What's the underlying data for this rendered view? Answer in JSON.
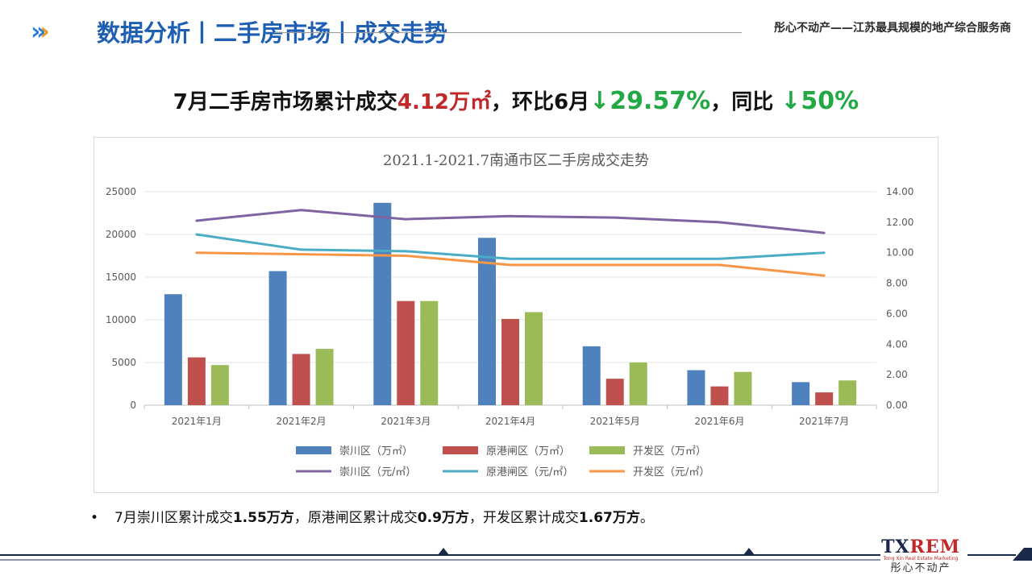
{
  "header": {
    "title": "数据分析丨二手房市场丨成交走势",
    "slogan": "彤心不动产——江苏最具规模的地产综合服务商",
    "icon": "chevron-right-triple-icon"
  },
  "headline": {
    "prefix": "7月二手房市场累计成交",
    "volume": "4.12万㎡",
    "mid": "，环比6月",
    "mom": "↓29.57%",
    "mid2": "，同比 ",
    "yoy": "↓50%"
  },
  "chart_data": {
    "type": "bar",
    "title": "2021.1-2021.7南通市区二手房成交走势",
    "categories": [
      "2021年1月",
      "2021年2月",
      "2021年3月",
      "2021年4月",
      "2021年5月",
      "2021年6月",
      "2021年7月"
    ],
    "ylim_left": [
      0,
      25000
    ],
    "yticks_left": [
      "0",
      "5000",
      "10000",
      "15000",
      "20000",
      "25000"
    ],
    "ylim_right": [
      0,
      14
    ],
    "yticks_right": [
      "0.00",
      "2.00",
      "4.00",
      "6.00",
      "8.00",
      "10.00",
      "12.00",
      "14.00"
    ],
    "bar_series": [
      {
        "name": "崇川区（万㎡）",
        "color": "#4f81bd",
        "values": [
          13000,
          15700,
          23700,
          19600,
          6900,
          4100,
          2700
        ]
      },
      {
        "name": "原港闸区（万㎡）",
        "color": "#c0504d",
        "values": [
          5600,
          6000,
          12200,
          10100,
          3100,
          2200,
          1500
        ]
      },
      {
        "name": "开发区（万㎡）",
        "color": "#9bbb59",
        "values": [
          4700,
          6600,
          12200,
          10900,
          5000,
          3900,
          2900
        ]
      }
    ],
    "line_series": [
      {
        "name": "崇川区（元/㎡）",
        "color": "#8064a2",
        "values": [
          12.1,
          12.8,
          12.2,
          12.4,
          12.3,
          12.0,
          11.3
        ]
      },
      {
        "name": "原港闸区（元/㎡）",
        "color": "#4bacc6",
        "values": [
          11.2,
          10.2,
          10.1,
          9.6,
          9.6,
          9.6,
          10.0
        ]
      },
      {
        "name": "开发区（元/㎡）",
        "color": "#f79646",
        "values": [
          10.0,
          9.9,
          9.8,
          9.2,
          9.2,
          9.2,
          8.5
        ]
      }
    ],
    "grid": true,
    "legend": "bottom"
  },
  "bullet": {
    "t1": "7月崇川区累计成交",
    "v1": "1.55万方",
    "t2": "，原港闸区累计成交",
    "v2": "0.9万方",
    "t3": "，开发区累计成交",
    "v3": "1.67万方",
    "t4": "。"
  },
  "logo": {
    "main_a": "TX",
    "main_b": "REM",
    "sub": "Tong Xin Real Estate Marketing",
    "cn": "彤心不动产"
  },
  "colors": {
    "title_blue": "#1f5fb3",
    "accent_orange": "#f39a1e",
    "red": "#c0282a",
    "green": "#22a845",
    "navy": "#1a2a4a"
  }
}
